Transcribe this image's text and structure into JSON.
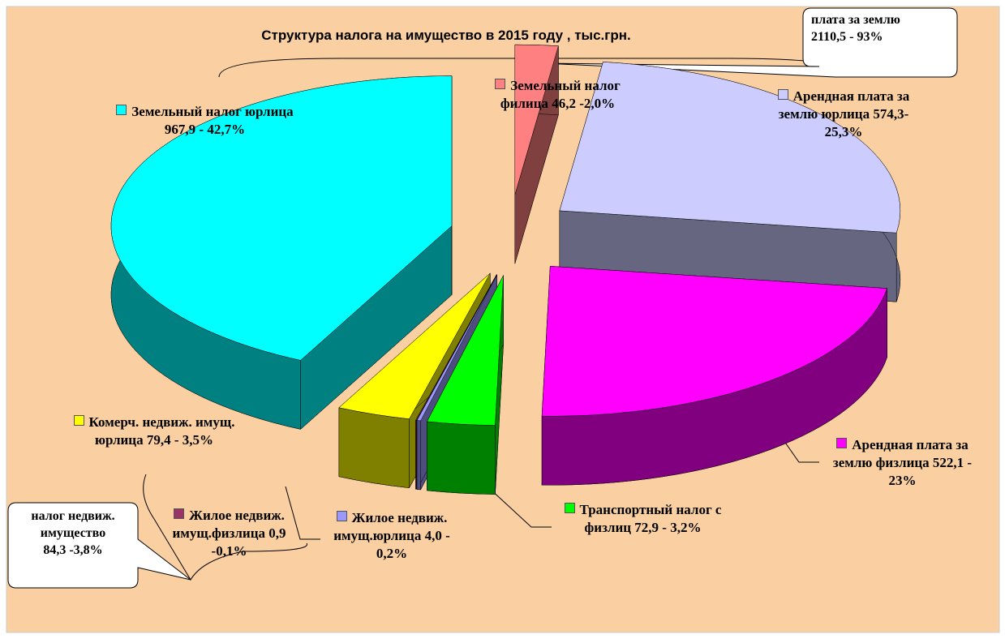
{
  "chart_data": {
    "type": "pie",
    "title": "Структура налога на имущество в 2015 году , тыс.грн.",
    "categories": [
      "Земельный налог филица",
      "Арендная плата за землю юрлица",
      "Арендная плата за землю физлица",
      "Транспортный налог с физлиц",
      "Жилое недвиж. имущ.юрлица",
      "Жилое недвиж. имущ.физлица",
      "Комерч. недвиж. имущ. юрлица",
      "Земельный налог юрлица"
    ],
    "values": [
      46.2,
      574.3,
      522.1,
      72.9,
      4.0,
      0.9,
      79.4,
      967.9
    ],
    "value_labels": [
      "46,2 -2,0%",
      "574,3- 25,3%",
      "522,1 - 23%",
      "72,9 - 3,2%",
      "4,0 - 0,2%",
      "0,9 -0,1%",
      "79,4 - 3,5%",
      "967,9 - 42,7%"
    ],
    "colors": [
      "#ff8080",
      "#ccccff",
      "#ff00ff",
      "#00ff00",
      "#9999ff",
      "#993366",
      "#ffff00",
      "#00ffff"
    ],
    "annotations": [
      [
        "плата за землю",
        "2110,5 - 93%"
      ],
      [
        "налог недвиж.",
        "имущество",
        "84,3 -3,8%"
      ]
    ]
  }
}
